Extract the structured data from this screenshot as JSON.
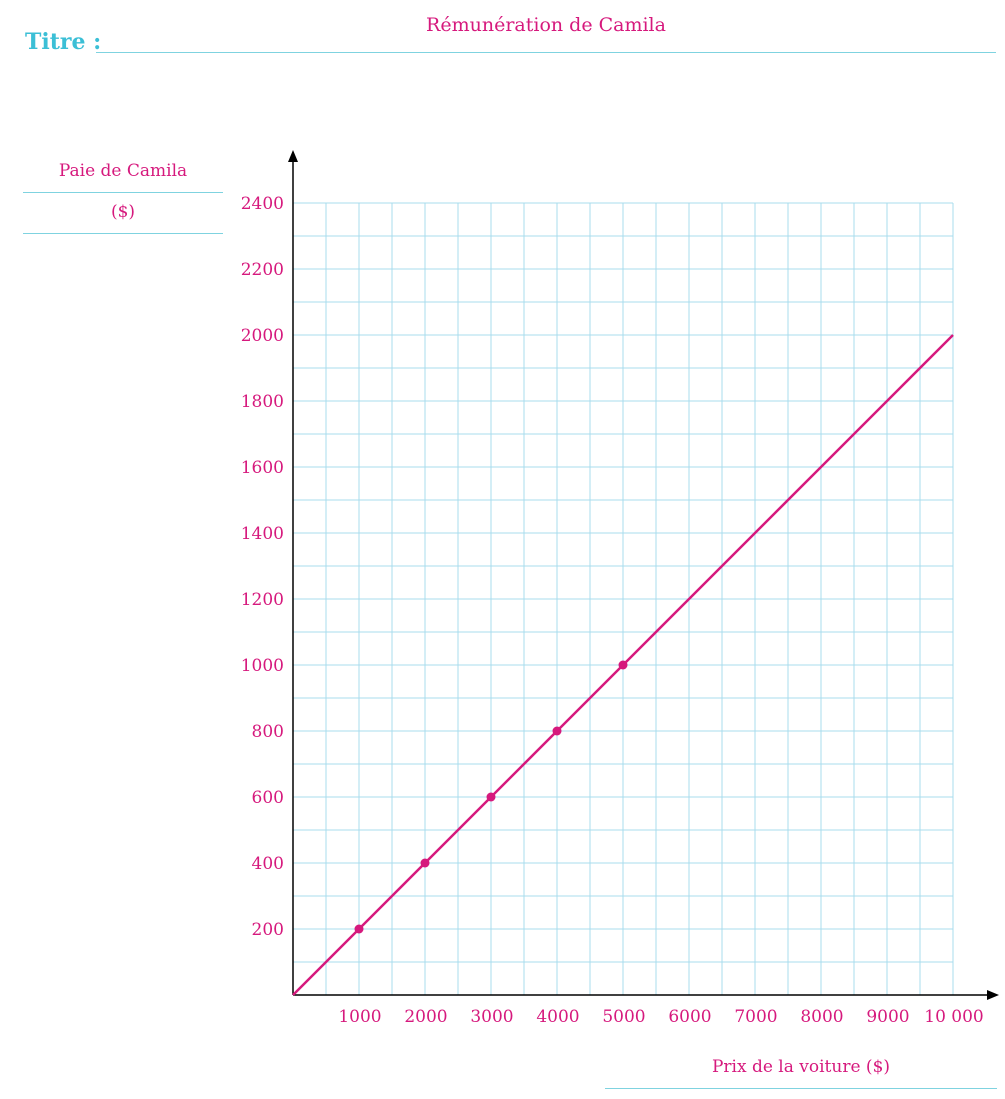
{
  "header": {
    "title_label": "Titre :",
    "title_text": "Rémunération de Camila"
  },
  "colors": {
    "accent_pink": "#d6197d",
    "grid_cyan": "#a8dced",
    "title_cyan": "#3bbfd6",
    "axis_black": "#000000"
  },
  "chart_data": {
    "type": "line",
    "title": "Rémunération de Camila",
    "ylabel_lines": [
      "Paie de Camila",
      "($)"
    ],
    "xlabel": "Prix de la voiture ($)",
    "xlim": [
      0,
      10000
    ],
    "ylim": [
      0,
      2400
    ],
    "x_ticks": [
      1000,
      2000,
      3000,
      4000,
      5000,
      6000,
      7000,
      8000,
      9000,
      10000
    ],
    "x_tick_labels": [
      "1000",
      "2000",
      "3000",
      "4000",
      "5000",
      "6000",
      "7000",
      "8000",
      "9000",
      "10 000"
    ],
    "y_ticks": [
      200,
      400,
      600,
      800,
      1000,
      1200,
      1400,
      1600,
      1800,
      2000,
      2200,
      2400
    ],
    "y_tick_labels": [
      "200",
      "400",
      "600",
      "800",
      "1000",
      "1200",
      "1400",
      "1600",
      "1800",
      "2000",
      "2200",
      "2400"
    ],
    "grid": true,
    "series": [
      {
        "line": {
          "x": [
            0,
            10000
          ],
          "y": [
            0,
            2000
          ]
        },
        "points": [
          {
            "x": 1000,
            "y": 200
          },
          {
            "x": 2000,
            "y": 400
          },
          {
            "x": 3000,
            "y": 600
          },
          {
            "x": 4000,
            "y": 800
          },
          {
            "x": 5000,
            "y": 1000
          }
        ]
      }
    ]
  }
}
